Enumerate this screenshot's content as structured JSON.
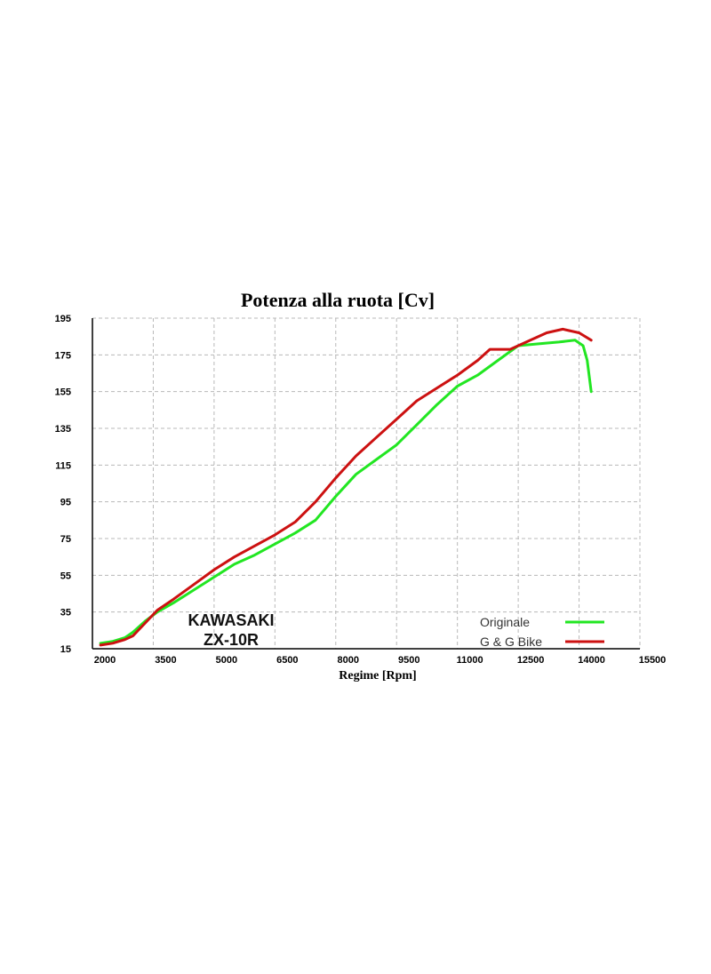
{
  "chart_data": {
    "type": "line",
    "title": "Potenza alla ruota [Cv]",
    "xlabel": "Regime [Rpm]",
    "ylabel": "",
    "xlim": [
      2000,
      15500
    ],
    "ylim": [
      15,
      195
    ],
    "xticks": [
      2000,
      3500,
      5000,
      6500,
      8000,
      9500,
      11000,
      12500,
      14000,
      15500
    ],
    "yticks": [
      15,
      35,
      55,
      75,
      95,
      115,
      135,
      155,
      175,
      195
    ],
    "grid": true,
    "legend_position": "bottom-right",
    "annotation": [
      "KAWASAKI",
      "ZX-10R"
    ],
    "series": [
      {
        "name": "Originale",
        "color": "#22e622",
        "points": [
          [
            2200,
            18
          ],
          [
            2500,
            19
          ],
          [
            2800,
            21
          ],
          [
            3000,
            24
          ],
          [
            3300,
            30
          ],
          [
            3600,
            35
          ],
          [
            4000,
            40
          ],
          [
            4500,
            47
          ],
          [
            5000,
            54
          ],
          [
            5500,
            61
          ],
          [
            6000,
            66
          ],
          [
            6500,
            72
          ],
          [
            7000,
            78
          ],
          [
            7500,
            85
          ],
          [
            8000,
            98
          ],
          [
            8500,
            110
          ],
          [
            9000,
            118
          ],
          [
            9500,
            126
          ],
          [
            10000,
            137
          ],
          [
            10500,
            148
          ],
          [
            11000,
            158
          ],
          [
            11500,
            164
          ],
          [
            12000,
            172
          ],
          [
            12500,
            180
          ],
          [
            13000,
            181
          ],
          [
            13500,
            182
          ],
          [
            13900,
            183
          ],
          [
            14100,
            180
          ],
          [
            14200,
            172
          ],
          [
            14300,
            155
          ]
        ]
      },
      {
        "name": "G & G Bike",
        "color": "#cc1111",
        "points": [
          [
            2200,
            17
          ],
          [
            2500,
            18
          ],
          [
            2800,
            20
          ],
          [
            3000,
            22
          ],
          [
            3300,
            29
          ],
          [
            3600,
            36
          ],
          [
            4000,
            42
          ],
          [
            4500,
            50
          ],
          [
            5000,
            58
          ],
          [
            5500,
            65
          ],
          [
            6000,
            71
          ],
          [
            6500,
            77
          ],
          [
            7000,
            84
          ],
          [
            7500,
            95
          ],
          [
            8000,
            108
          ],
          [
            8500,
            120
          ],
          [
            9000,
            130
          ],
          [
            9500,
            140
          ],
          [
            10000,
            150
          ],
          [
            10500,
            157
          ],
          [
            11000,
            164
          ],
          [
            11500,
            172
          ],
          [
            11800,
            178
          ],
          [
            12300,
            178
          ],
          [
            12800,
            183
          ],
          [
            13200,
            187
          ],
          [
            13600,
            189
          ],
          [
            14000,
            187
          ],
          [
            14300,
            183
          ]
        ]
      }
    ]
  }
}
